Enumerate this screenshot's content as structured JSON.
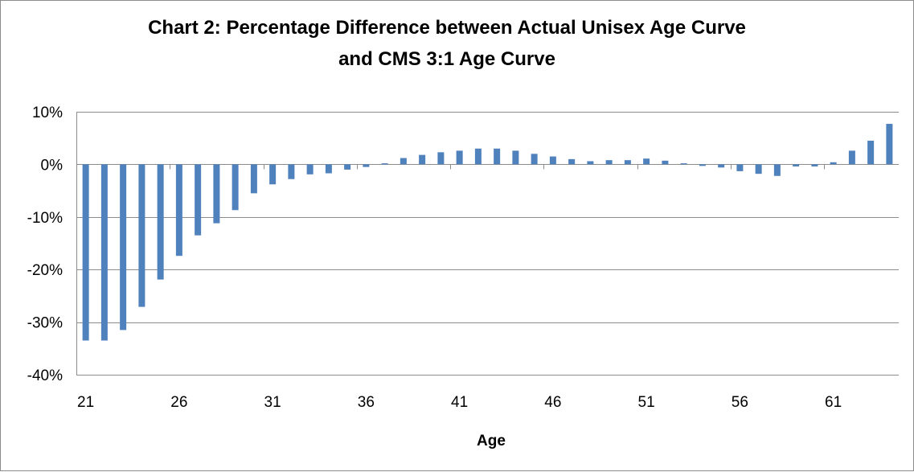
{
  "chart_data": {
    "type": "bar",
    "title": "Chart 2: Percentage Difference between Actual Unisex Age Curve and CMS 3:1 Age Curve",
    "title_lines": [
      "Chart 2: Percentage Difference between Actual Unisex Age Curve",
      "and CMS 3:1 Age Curve"
    ],
    "xlabel": "Age",
    "ylabel": "",
    "ylim": [
      -40,
      10
    ],
    "y_ticks": [
      10,
      0,
      -10,
      -20,
      -30,
      -40
    ],
    "y_tick_labels": [
      "10%",
      "0%",
      "-10%",
      "-20%",
      "-30%",
      "-40%"
    ],
    "x_tick_labels": [
      "21",
      "26",
      "31",
      "36",
      "41",
      "46",
      "51",
      "56",
      "61"
    ],
    "grid": true,
    "legend": "none",
    "bar_color": "#4f81bd",
    "categories": [
      21,
      22,
      23,
      24,
      25,
      26,
      27,
      28,
      29,
      30,
      31,
      32,
      33,
      34,
      35,
      36,
      37,
      38,
      39,
      40,
      41,
      42,
      43,
      44,
      45,
      46,
      47,
      48,
      49,
      50,
      51,
      52,
      53,
      54,
      55,
      56,
      57,
      58,
      59,
      60,
      61,
      62,
      63,
      64
    ],
    "values": [
      -33.5,
      -33.5,
      -31.5,
      -27.1,
      -21.9,
      -17.4,
      -13.5,
      -11.2,
      -8.7,
      -5.5,
      -3.8,
      -2.8,
      -1.9,
      -1.7,
      -1.0,
      -0.5,
      0.2,
      1.2,
      1.8,
      2.3,
      2.6,
      3.0,
      3.0,
      2.6,
      2.0,
      1.5,
      1.0,
      0.6,
      0.8,
      0.8,
      1.1,
      0.7,
      0.2,
      -0.3,
      -0.6,
      -1.3,
      -1.8,
      -2.2,
      -0.4,
      -0.4,
      0.4,
      2.6,
      4.5,
      7.7
    ]
  }
}
